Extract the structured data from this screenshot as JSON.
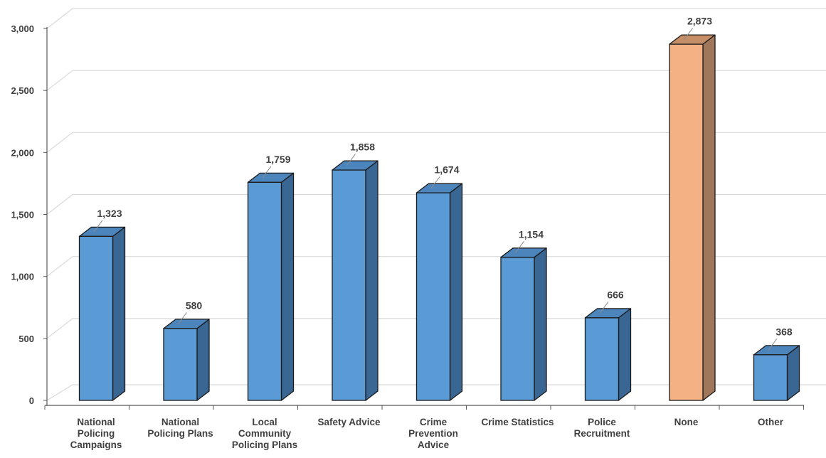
{
  "chart_data": {
    "type": "bar",
    "categories": [
      "National Policing Campaigns",
      "National Policing Plans",
      "Local Community Policing Plans",
      "Safety Advice",
      "Crime Prevention Advice",
      "Crime Statistics",
      "Police Recruitment",
      "None",
      "Other"
    ],
    "category_label_lines": [
      [
        "National",
        "Policing",
        "Campaigns"
      ],
      [
        "National",
        "Policing Plans"
      ],
      [
        "Local",
        "Community",
        "Policing Plans"
      ],
      [
        "Safety Advice"
      ],
      [
        "Crime",
        "Prevention",
        "Advice"
      ],
      [
        "Crime Statistics"
      ],
      [
        "Police",
        "Recruitment"
      ],
      [
        "None"
      ],
      [
        "Other"
      ]
    ],
    "values": [
      1323,
      580,
      1759,
      1858,
      1674,
      1154,
      666,
      2873,
      368
    ],
    "value_labels": [
      "1,323",
      "580",
      "1,759",
      "1,858",
      "1,674",
      "1,154",
      "666",
      "2,873",
      "368"
    ],
    "ylim": [
      0,
      3000
    ],
    "yticks": [
      0,
      500,
      1000,
      1500,
      2000,
      2500,
      3000
    ],
    "ytick_labels": [
      "0",
      "500",
      "1,000",
      "1,500",
      "2,000",
      "2,500",
      "3,000"
    ],
    "grid": true,
    "style": "3d-column",
    "colors": {
      "default_front": "#5B9BD5",
      "default_side": "#3A6694",
      "default_top": "#4C84BC",
      "highlight_front": "#F4B183",
      "highlight_side": "#A0775A",
      "highlight_top": "#C68E66",
      "highlight_category": "None",
      "grid": "#D9D9D9",
      "text": "#404040"
    }
  }
}
